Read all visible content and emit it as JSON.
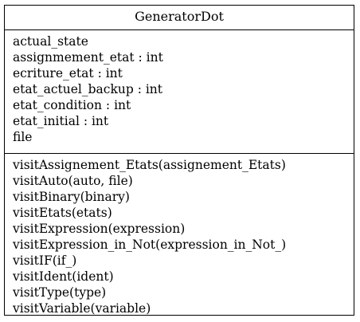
{
  "class_name": "GeneratorDot",
  "attributes": [
    "actual_state",
    "assignmement_etat : int",
    "ecriture_etat : int",
    "etat_actuel_backup : int",
    "etat_condition : int",
    "etat_initial : int",
    "file"
  ],
  "methods": [
    "visitAssignement_Etats(assignement_Etats)",
    "visitAuto(auto, file)",
    "visitBinary(binary)",
    "visitEtats(etats)",
    "visitExpression(expression)",
    "visitExpression_in_Not(expression_in_Not_)",
    "visitIF(if_)",
    "visitIdent(ident)",
    "visitType(type)",
    "visitVariable(variable)"
  ]
}
